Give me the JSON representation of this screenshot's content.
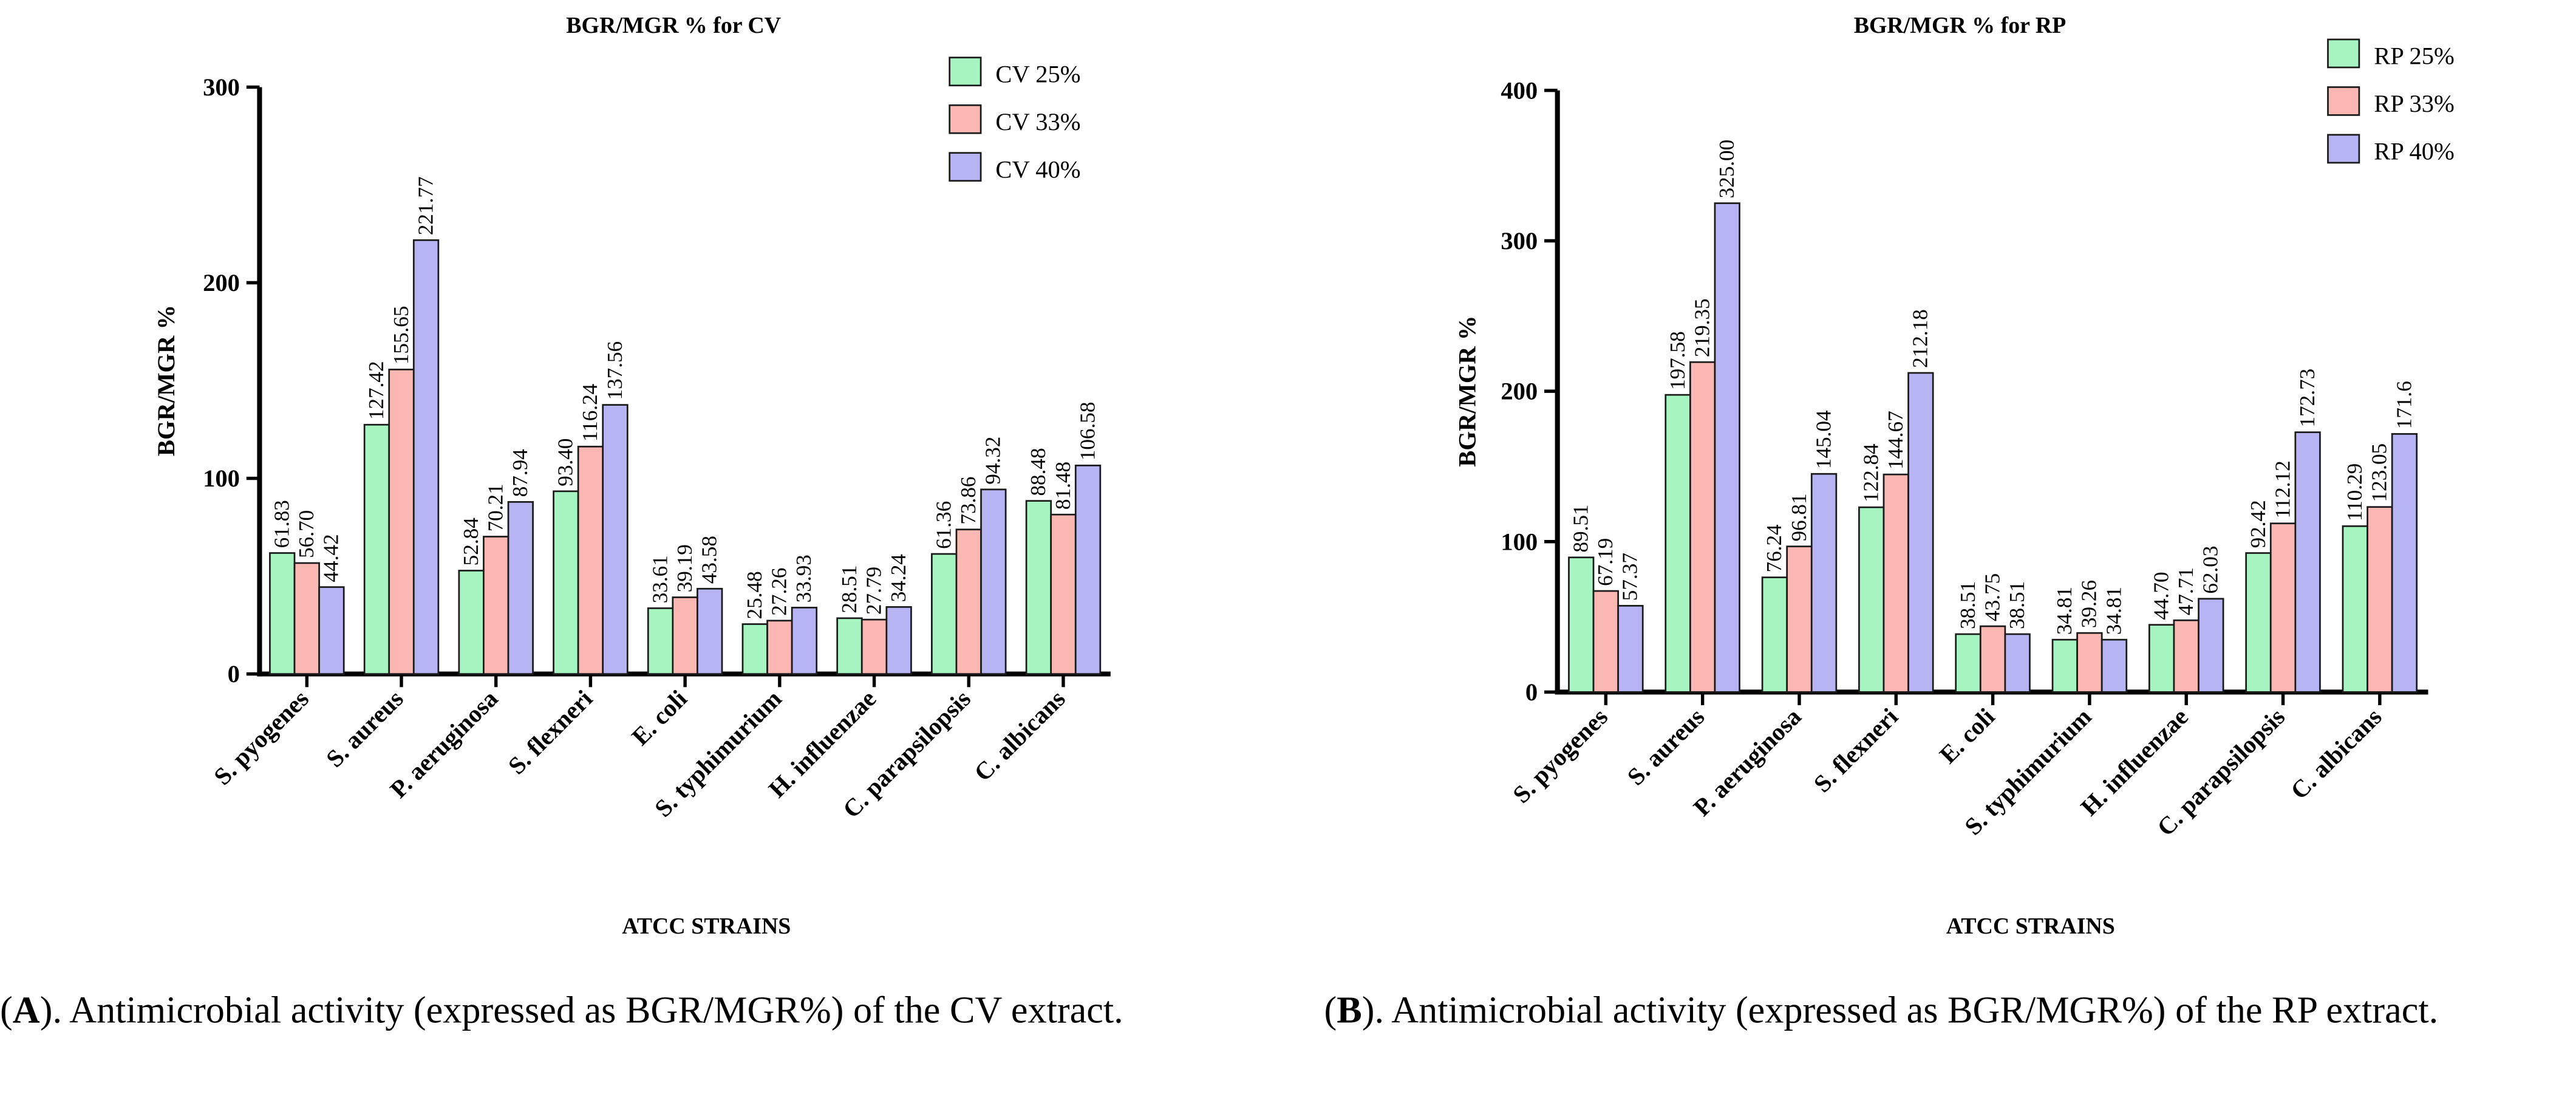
{
  "chart_data": [
    {
      "type": "bar",
      "title": "BGR/MGR % for CV",
      "xlabel": "ATCC STRAINS",
      "ylabel": "BGR/MGR %",
      "ylim": [
        0,
        300
      ],
      "yticks": [
        0,
        100,
        200,
        300
      ],
      "legend_position": "top-right",
      "categories": [
        "S. pyogenes",
        "S. aureus",
        "P. aeruginosa",
        "S. flexneri",
        "E. coli",
        "S. typhimurium",
        "H. influenzae",
        "C. parapsilopsis",
        "C. albicans"
      ],
      "series": [
        {
          "name": "CV 25%",
          "color": "#a6f5c0",
          "values": [
            61.83,
            127.42,
            52.84,
            93.4,
            33.61,
            25.48,
            28.51,
            61.36,
            88.48
          ],
          "labels": [
            "61.83",
            "127.42",
            "52.84",
            "93.40",
            "33.61",
            "25.48",
            "28.51",
            "61.36",
            "88.48"
          ]
        },
        {
          "name": "CV 33%",
          "color": "#fbb7b2",
          "values": [
            56.7,
            155.65,
            70.21,
            116.24,
            39.19,
            27.26,
            27.79,
            73.86,
            81.48
          ],
          "labels": [
            "56.70",
            "155.65",
            "70.21",
            "116.24",
            "39.19",
            "27.26",
            "27.79",
            "73.86",
            "81.48"
          ]
        },
        {
          "name": "CV 40%",
          "color": "#b6b4f3",
          "values": [
            44.42,
            221.77,
            87.94,
            137.56,
            43.58,
            33.93,
            34.24,
            94.32,
            106.58
          ],
          "labels": [
            "44.42",
            "221.77",
            "87.94",
            "137.56",
            "43.58",
            "33.93",
            "34.24",
            "94.32",
            "106.58"
          ]
        }
      ]
    },
    {
      "type": "bar",
      "title": "BGR/MGR % for RP",
      "xlabel": "ATCC STRAINS",
      "ylabel": "BGR/MGR %",
      "ylim": [
        0,
        400
      ],
      "yticks": [
        0,
        100,
        200,
        300,
        400
      ],
      "legend_position": "top-right",
      "categories": [
        "S. pyogenes",
        "S. aureus",
        "P. aeruginosa",
        "S. flexneri",
        "E. coli",
        "S. typhimurium",
        "H. influenzae",
        "C. parapsilopsis",
        "C. albicans"
      ],
      "series": [
        {
          "name": "RP 25%",
          "color": "#a6f5c0",
          "values": [
            89.51,
            197.58,
            76.24,
            122.84,
            38.51,
            34.81,
            44.7,
            92.42,
            110.29
          ],
          "labels": [
            "89.51",
            "197.58",
            "76.24",
            "122.84",
            "38.51",
            "34.81",
            "44.70",
            "92.42",
            "110.29"
          ]
        },
        {
          "name": "RP 33%",
          "color": "#fbb7b2",
          "values": [
            67.19,
            219.35,
            96.81,
            144.67,
            43.75,
            39.26,
            47.71,
            112.12,
            123.05
          ],
          "labels": [
            "67.19",
            "219.35",
            "96.81",
            "144.67",
            "43.75",
            "39.26",
            "47.71",
            "112.12",
            "123.05"
          ]
        },
        {
          "name": "RP 40%",
          "color": "#b6b4f3",
          "values": [
            57.37,
            325.0,
            145.04,
            212.18,
            38.51,
            34.81,
            62.03,
            172.73,
            171.6
          ],
          "labels": [
            "57.37",
            "325.00",
            "145.04",
            "212.18",
            "38.51",
            "34.81",
            "62.03",
            "172.73",
            "171.6"
          ]
        }
      ]
    }
  ],
  "captions": {
    "a_label": "A",
    "a_text": "). Antimicrobial activity (expressed as BGR/MGR%) of the CV extract.",
    "b_label": "B",
    "b_text": "). Antimicrobial activity (expressed as BGR/MGR%) of the RP extract."
  }
}
